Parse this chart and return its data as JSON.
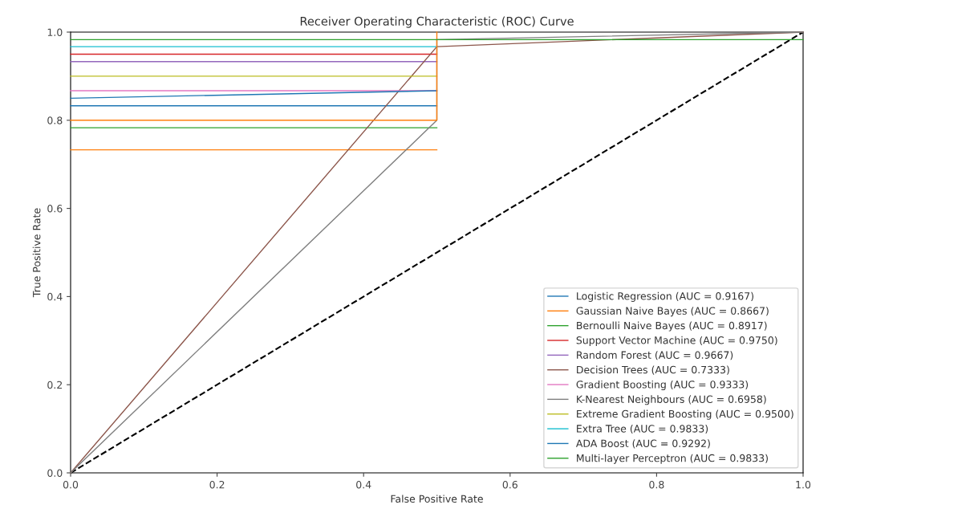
{
  "chart_data": {
    "type": "line",
    "title": "Receiver Operating Characteristic (ROC) Curve",
    "xlabel": "False Positive Rate",
    "ylabel": "True Positive Rate",
    "xlim": [
      0,
      1
    ],
    "ylim": [
      0,
      1
    ],
    "xticks": [
      {
        "value": 0,
        "label": "0.0"
      },
      0.2,
      0.4,
      0.6,
      0.8,
      {
        "value": 1,
        "label": "1.0"
      }
    ],
    "yticks": [
      {
        "value": 0,
        "label": "0.0"
      },
      0.2,
      0.4,
      0.6,
      0.8,
      {
        "value": 1,
        "label": "1.0"
      }
    ],
    "grid": false,
    "legend": "bottom right",
    "marker": "none",
    "series": [
      {
        "color": "#000000",
        "line_style": "dashed",
        "x": [
          0,
          1
        ],
        "values": [
          0,
          1
        ]
      },
      {
        "name": "Logistic Regression (AUC = 0.9167)",
        "color": "#1f77b4",
        "x": [
          0,
          0.5
        ],
        "values": [
          0.833,
          0.833
        ]
      },
      {
        "name": "Gaussian Naive Bayes (AUC = 0.8667)",
        "color": "#ff7f0e",
        "x": [
          0,
          0.5
        ],
        "values": [
          0.733,
          0.733
        ]
      },
      {
        "name": "Bernoulli Naive Bayes (AUC = 0.8917)",
        "color": "#2ca02c",
        "x": [
          0,
          0.5
        ],
        "values": [
          0.783,
          0.783
        ]
      },
      {
        "name": "Support Vector Machine (AUC = 0.9750)",
        "color": "#d62728",
        "x": [
          0,
          0.5
        ],
        "values": [
          0.95,
          0.95
        ]
      },
      {
        "name": "Random Forest (AUC = 0.9667)",
        "color": "#9467bd",
        "x": [
          0,
          0.5
        ],
        "values": [
          0.933,
          0.933
        ]
      },
      {
        "name": "Decision Trees (AUC = 0.7333)",
        "color": "#8c564b",
        "x": [
          0,
          0.5,
          1
        ],
        "values": [
          0,
          0.967,
          1
        ]
      },
      {
        "name": "Gradient Boosting (AUC = 0.9333)",
        "color": "#e377c2",
        "x": [
          0,
          0.5
        ],
        "values": [
          0.867,
          0.867
        ]
      },
      {
        "name": "K-Nearest Neighbours (AUC = 0.6958)",
        "color": "#7f7f7f",
        "x": [
          0,
          0.5,
          0.5,
          1
        ],
        "values": [
          0,
          0.8,
          0.983,
          1
        ]
      },
      {
        "name": "Extreme Gradient Boosting (AUC = 0.9500)",
        "color": "#bcbd22",
        "x": [
          0,
          0.5
        ],
        "values": [
          0.9,
          0.9
        ]
      },
      {
        "name": "Extra Tree (AUC = 0.9833)",
        "color": "#17becf",
        "x": [
          0,
          0.5
        ],
        "values": [
          0.967,
          0.967
        ]
      },
      {
        "name": "ADA Boost (AUC = 0.9292)",
        "color": "#1f77b4",
        "x": [
          0,
          0.5
        ],
        "values": [
          0.85,
          0.867
        ]
      },
      {
        "color": "#ff7f0e",
        "x": [
          0,
          0.5,
          0.5
        ],
        "values": [
          0.8,
          0.8,
          1
        ]
      },
      {
        "name": "Multi-layer Perceptron (AUC = 0.9833)",
        "color": "#2ca02c",
        "x": [
          0,
          1
        ],
        "values": [
          0.983,
          0.983
        ]
      }
    ]
  }
}
